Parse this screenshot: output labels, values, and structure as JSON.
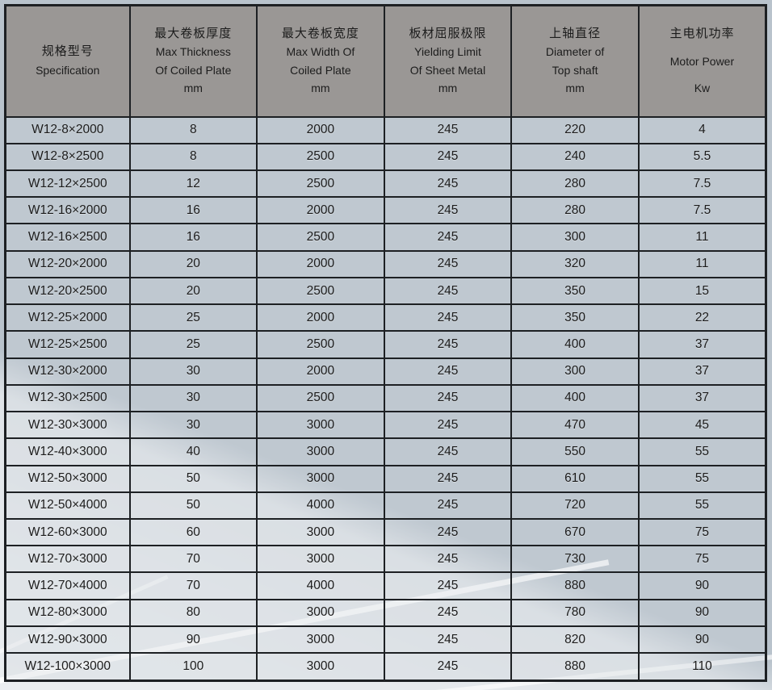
{
  "table": {
    "columns": [
      {
        "zh": "规格型号",
        "en": [
          "Specification"
        ],
        "unit": ""
      },
      {
        "zh": "最大卷板厚度",
        "en": [
          "Max Thickness",
          "Of Coiled Plate"
        ],
        "unit": "mm"
      },
      {
        "zh": "最大卷板宽度",
        "en": [
          "Max Width  Of",
          "Coiled Plate"
        ],
        "unit": "mm"
      },
      {
        "zh": "板材屈服极限",
        "en": [
          "Yielding Limit",
          "Of  Sheet Metal"
        ],
        "unit": "mm"
      },
      {
        "zh": "上轴直径",
        "en": [
          "Diameter of",
          "Top shaft"
        ],
        "unit": "mm"
      },
      {
        "zh": "主电机功率",
        "en": [
          "Motor Power"
        ],
        "unit": "Kw"
      }
    ],
    "rows": [
      [
        "W12-8×2000",
        "8",
        "2000",
        "245",
        "220",
        "4"
      ],
      [
        "W12-8×2500",
        "8",
        "2500",
        "245",
        "240",
        "5.5"
      ],
      [
        "W12-12×2500",
        "12",
        "2500",
        "245",
        "280",
        "7.5"
      ],
      [
        "W12-16×2000",
        "16",
        "2000",
        "245",
        "280",
        "7.5"
      ],
      [
        "W12-16×2500",
        "16",
        "2500",
        "245",
        "300",
        "11"
      ],
      [
        "W12-20×2000",
        "20",
        "2000",
        "245",
        "320",
        "11"
      ],
      [
        "W12-20×2500",
        "20",
        "2500",
        "245",
        "350",
        "15"
      ],
      [
        "W12-25×2000",
        "25",
        "2000",
        "245",
        "350",
        "22"
      ],
      [
        "W12-25×2500",
        "25",
        "2500",
        "245",
        "400",
        "37"
      ],
      [
        "W12-30×2000",
        "30",
        "2000",
        "245",
        "300",
        "37"
      ],
      [
        "W12-30×2500",
        "30",
        "2500",
        "245",
        "400",
        "37"
      ],
      [
        "W12-30×3000",
        "30",
        "3000",
        "245",
        "470",
        "45"
      ],
      [
        "W12-40×3000",
        "40",
        "3000",
        "245",
        "550",
        "55"
      ],
      [
        "W12-50×3000",
        "50",
        "3000",
        "245",
        "610",
        "55"
      ],
      [
        "W12-50×4000",
        "50",
        "4000",
        "245",
        "720",
        "55"
      ],
      [
        "W12-60×3000",
        "60",
        "3000",
        "245",
        "670",
        "75"
      ],
      [
        "W12-70×3000",
        "70",
        "3000",
        "245",
        "730",
        "75"
      ],
      [
        "W12-70×4000",
        "70",
        "4000",
        "245",
        "880",
        "90"
      ],
      [
        "W12-80×3000",
        "80",
        "3000",
        "245",
        "780",
        "90"
      ],
      [
        "W12-90×3000",
        "90",
        "3000",
        "245",
        "820",
        "90"
      ],
      [
        "W12-100×3000",
        "100",
        "3000",
        "245",
        "880",
        "110"
      ]
    ]
  },
  "colors": {
    "header_fill": "#9a9795",
    "cell_fill": "#c5cdd4",
    "cell_fill_lit": "#e7ebee",
    "border": "#1d2023",
    "page_background": "#b9c3cc",
    "text": "#1b1b1b"
  }
}
